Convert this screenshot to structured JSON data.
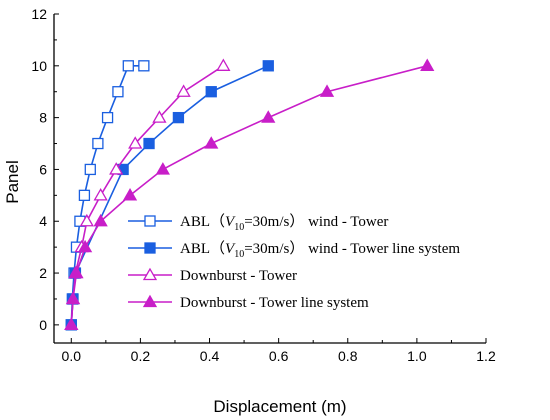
{
  "chart_data": {
    "type": "line",
    "xlabel": "Displacement (m)",
    "ylabel": "Panel",
    "xlim": [
      -0.05,
      1.2
    ],
    "ylim": [
      -0.7,
      12
    ],
    "xticks": [
      0.0,
      0.2,
      0.4,
      0.6,
      0.8,
      1.0,
      1.2
    ],
    "xtick_labels": [
      "0.0",
      "0.2",
      "0.4",
      "0.6",
      "0.8",
      "1.0",
      "1.2"
    ],
    "yticks": [
      0,
      2,
      4,
      6,
      8,
      10,
      12
    ],
    "ytick_labels": [
      "0",
      "2",
      "4",
      "6",
      "8",
      "10",
      "12"
    ],
    "grid": false,
    "legend_position": "center-right",
    "series": [
      {
        "legend_parts": [
          "ABL（",
          "V",
          "10",
          "=30m/s） wind - Tower"
        ],
        "color": "#1a5fe0",
        "marker": "square-open",
        "x": [
          0.0,
          0.003,
          0.008,
          0.015,
          0.025,
          0.038,
          0.055,
          0.077,
          0.105,
          0.135,
          0.165,
          0.21
        ],
        "y": [
          0,
          1,
          2,
          3,
          4,
          5,
          6,
          7,
          8,
          9,
          10,
          10
        ]
      },
      {
        "legend_parts": [
          "ABL（",
          "V",
          "10",
          "=30m/s） wind - Tower line system"
        ],
        "color": "#1a5fe0",
        "marker": "square-filled",
        "x": [
          0.0,
          0.005,
          0.012,
          0.15,
          0.225,
          0.31,
          0.405,
          0.57
        ],
        "y": [
          0,
          1,
          2,
          6,
          7,
          8,
          9,
          10
        ]
      },
      {
        "legend_parts": [
          "Downburst - Tower"
        ],
        "color": "#c81ec8",
        "marker": "triangle-open",
        "x": [
          0.0,
          0.005,
          0.012,
          0.03,
          0.045,
          0.085,
          0.13,
          0.185,
          0.255,
          0.325,
          0.44
        ],
        "y": [
          0,
          1,
          2,
          3,
          4,
          5,
          6,
          7,
          8,
          9,
          10
        ]
      },
      {
        "legend_parts": [
          "Downburst - Tower line system"
        ],
        "color": "#c81ec8",
        "marker": "triangle-filled",
        "x": [
          0.0,
          0.005,
          0.015,
          0.04,
          0.085,
          0.17,
          0.265,
          0.405,
          0.57,
          0.74,
          1.03
        ],
        "y": [
          0,
          1,
          2,
          3,
          4,
          5,
          6,
          7,
          8,
          9,
          10
        ]
      }
    ]
  }
}
